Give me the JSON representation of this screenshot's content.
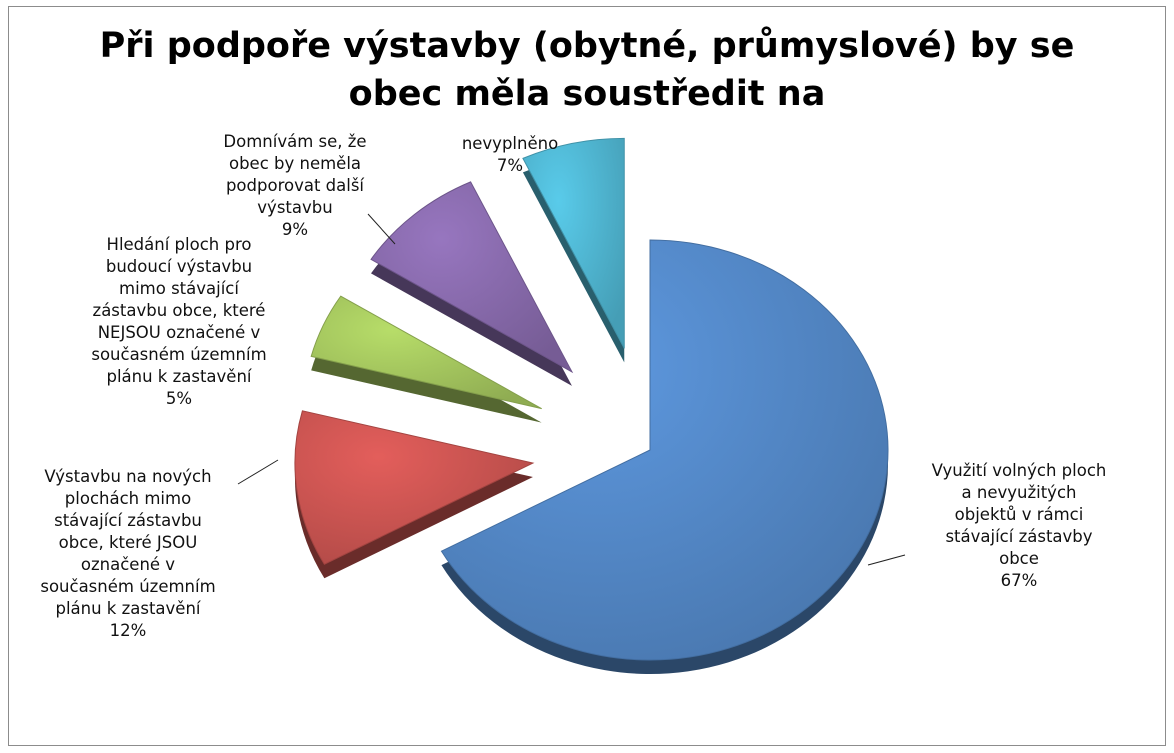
{
  "chart_data": {
    "type": "pie",
    "title": [
      "Při podpoře výstavby (obytné, průmyslové) by se",
      "obec měla soustředit na"
    ],
    "exploded": true,
    "style": "3d",
    "slices": [
      {
        "label": [
          "Využití volných ploch",
          "a nevyužitých",
          "objektů v rámci",
          "stávající zástavby",
          "obce"
        ],
        "value": 67,
        "value_label": "67%",
        "color": "#4F81BD"
      },
      {
        "label": [
          "Výstavbu na nových",
          "plochách mimo",
          "stávající zástavbu",
          "obce, které JSOU",
          "označené v",
          "současném územním",
          "plánu k zastavění"
        ],
        "value": 12,
        "value_label": "12%",
        "color": "#C0504D"
      },
      {
        "label": [
          "Hledání ploch pro",
          "budoucí výstavbu",
          "mimo stávající",
          "zástavbu obce, které",
          "NEJSOU označené v",
          "současném územním",
          "plánu k zastavění"
        ],
        "value": 5,
        "value_label": "5%",
        "color": "#9BBB59"
      },
      {
        "label": [
          "Domnívám se, že",
          "obec by neměla",
          "podporovat další",
          "výstavbu"
        ],
        "value": 9,
        "value_label": "9%",
        "color": "#8064A2"
      },
      {
        "label": [
          "nevyplněno"
        ],
        "value": 7,
        "value_label": "7%",
        "color": "#4BACC6"
      }
    ]
  }
}
